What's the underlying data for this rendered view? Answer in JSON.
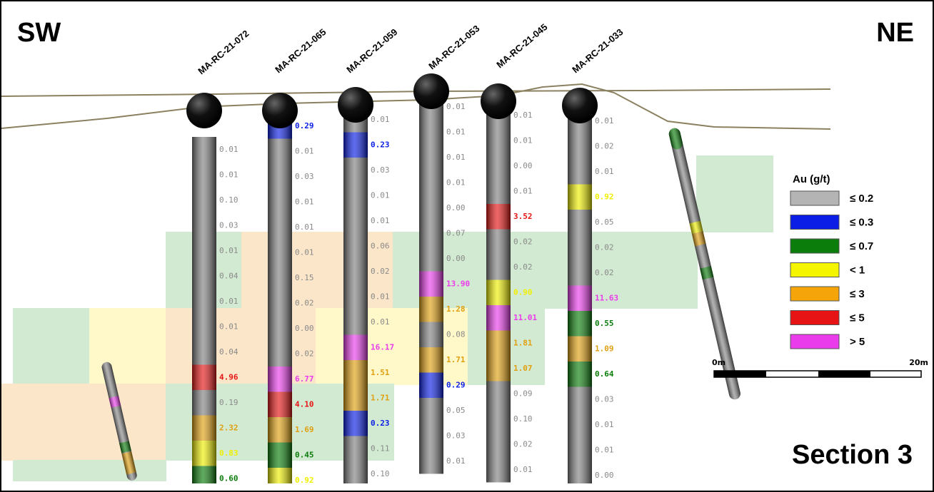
{
  "header": {
    "left": "SW",
    "right": "NE",
    "section": "Section 3"
  },
  "legend": {
    "title": "Au (g/t)",
    "items": [
      {
        "label": "≤ 0.2",
        "color": "#b4b4b4"
      },
      {
        "label": "≤ 0.3",
        "color": "#0a1ee6"
      },
      {
        "label": "≤ 0.7",
        "color": "#0a7d0a"
      },
      {
        "label": "< 1",
        "color": "#f5f500"
      },
      {
        "label": "≤ 3",
        "color": "#f5a50a"
      },
      {
        "label": "≤ 5",
        "color": "#e61414"
      },
      {
        "label": "> 5",
        "color": "#eb3ceb"
      }
    ]
  },
  "scale": {
    "start": "0m",
    "end": "20m"
  },
  "holes": [
    {
      "name": "MA-RC-21-072",
      "assays": [
        {
          "value": "0.01",
          "color": "#808080"
        },
        {
          "value": "0.01",
          "color": "#808080"
        },
        {
          "value": "0.10",
          "color": "#808080"
        },
        {
          "value": "0.03",
          "color": "#808080"
        },
        {
          "value": "0.01",
          "color": "#808080"
        },
        {
          "value": "0.04",
          "color": "#808080"
        },
        {
          "value": "0.01",
          "color": "#808080"
        },
        {
          "value": "0.01",
          "color": "#808080"
        },
        {
          "value": "0.04",
          "color": "#808080"
        },
        {
          "value": "4.96",
          "color": "#e61414"
        },
        {
          "value": "0.19",
          "color": "#808080"
        },
        {
          "value": "2.32",
          "color": "#e0a010"
        },
        {
          "value": "0.83",
          "color": "#f0f000"
        },
        {
          "value": "0.60",
          "color": "#0a7d0a"
        }
      ]
    },
    {
      "name": "MA-RC-21-065",
      "assays": [
        {
          "value": "0.29",
          "color": "#0a1ee6"
        },
        {
          "value": "0.01",
          "color": "#808080"
        },
        {
          "value": "0.03",
          "color": "#808080"
        },
        {
          "value": "0.01",
          "color": "#808080"
        },
        {
          "value": "0.01",
          "color": "#808080"
        },
        {
          "value": "0.01",
          "color": "#808080"
        },
        {
          "value": "0.15",
          "color": "#808080"
        },
        {
          "value": "0.02",
          "color": "#808080"
        },
        {
          "value": "0.00",
          "color": "#808080"
        },
        {
          "value": "0.02",
          "color": "#808080"
        },
        {
          "value": "6.77",
          "color": "#eb3ceb"
        },
        {
          "value": "4.10",
          "color": "#e61414"
        },
        {
          "value": "1.69",
          "color": "#e0a010"
        },
        {
          "value": "0.45",
          "color": "#0a7d0a"
        },
        {
          "value": "0.92",
          "color": "#f0f000"
        }
      ]
    },
    {
      "name": "MA-RC-21-059",
      "assays": [
        {
          "value": "0.01",
          "color": "#808080"
        },
        {
          "value": "0.23",
          "color": "#0a1ee6"
        },
        {
          "value": "0.03",
          "color": "#808080"
        },
        {
          "value": "0.01",
          "color": "#808080"
        },
        {
          "value": "0.01",
          "color": "#808080"
        },
        {
          "value": "0.06",
          "color": "#808080"
        },
        {
          "value": "0.02",
          "color": "#808080"
        },
        {
          "value": "0.01",
          "color": "#808080"
        },
        {
          "value": "0.01",
          "color": "#808080"
        },
        {
          "value": "16.17",
          "color": "#eb3ceb"
        },
        {
          "value": "1.51",
          "color": "#e0a010"
        },
        {
          "value": "1.71",
          "color": "#e0a010"
        },
        {
          "value": "0.23",
          "color": "#0a1ee6"
        },
        {
          "value": "0.11",
          "color": "#808080"
        },
        {
          "value": "0.10",
          "color": "#808080"
        }
      ]
    },
    {
      "name": "MA-RC-21-053",
      "assays": [
        {
          "value": "0.01",
          "color": "#808080"
        },
        {
          "value": "0.01",
          "color": "#808080"
        },
        {
          "value": "0.01",
          "color": "#808080"
        },
        {
          "value": "0.01",
          "color": "#808080"
        },
        {
          "value": "0.00",
          "color": "#808080"
        },
        {
          "value": "0.07",
          "color": "#808080"
        },
        {
          "value": "0.00",
          "color": "#808080"
        },
        {
          "value": "13.90",
          "color": "#eb3ceb"
        },
        {
          "value": "1.28",
          "color": "#e0a010"
        },
        {
          "value": "0.08",
          "color": "#808080"
        },
        {
          "value": "1.71",
          "color": "#e0a010"
        },
        {
          "value": "0.29",
          "color": "#0a1ee6"
        },
        {
          "value": "0.05",
          "color": "#808080"
        },
        {
          "value": "0.03",
          "color": "#808080"
        },
        {
          "value": "0.01",
          "color": "#808080"
        }
      ]
    },
    {
      "name": "MA-RC-21-045",
      "assays": [
        {
          "value": "0.01",
          "color": "#808080"
        },
        {
          "value": "0.01",
          "color": "#808080"
        },
        {
          "value": "0.00",
          "color": "#808080"
        },
        {
          "value": "0.01",
          "color": "#808080"
        },
        {
          "value": "3.52",
          "color": "#e61414"
        },
        {
          "value": "0.02",
          "color": "#808080"
        },
        {
          "value": "0.02",
          "color": "#808080"
        },
        {
          "value": "0.90",
          "color": "#f0f000"
        },
        {
          "value": "11.01",
          "color": "#eb3ceb"
        },
        {
          "value": "1.81",
          "color": "#e0a010"
        },
        {
          "value": "1.07",
          "color": "#e0a010"
        },
        {
          "value": "0.09",
          "color": "#808080"
        },
        {
          "value": "0.10",
          "color": "#808080"
        },
        {
          "value": "0.02",
          "color": "#808080"
        },
        {
          "value": "0.01",
          "color": "#808080"
        }
      ]
    },
    {
      "name": "MA-RC-21-033",
      "assays": [
        {
          "value": "0.01",
          "color": "#808080"
        },
        {
          "value": "0.02",
          "color": "#808080"
        },
        {
          "value": "0.01",
          "color": "#808080"
        },
        {
          "value": "0.92",
          "color": "#f0f000"
        },
        {
          "value": "0.05",
          "color": "#808080"
        },
        {
          "value": "0.02",
          "color": "#808080"
        },
        {
          "value": "0.02",
          "color": "#808080"
        },
        {
          "value": "11.63",
          "color": "#eb3ceb"
        },
        {
          "value": "0.55",
          "color": "#0a7d0a"
        },
        {
          "value": "1.09",
          "color": "#e0a010"
        },
        {
          "value": "0.64",
          "color": "#0a7d0a"
        },
        {
          "value": "0.03",
          "color": "#808080"
        },
        {
          "value": "0.01",
          "color": "#808080"
        },
        {
          "value": "0.01",
          "color": "#808080"
        },
        {
          "value": "0.00",
          "color": "#808080"
        }
      ]
    }
  ]
}
